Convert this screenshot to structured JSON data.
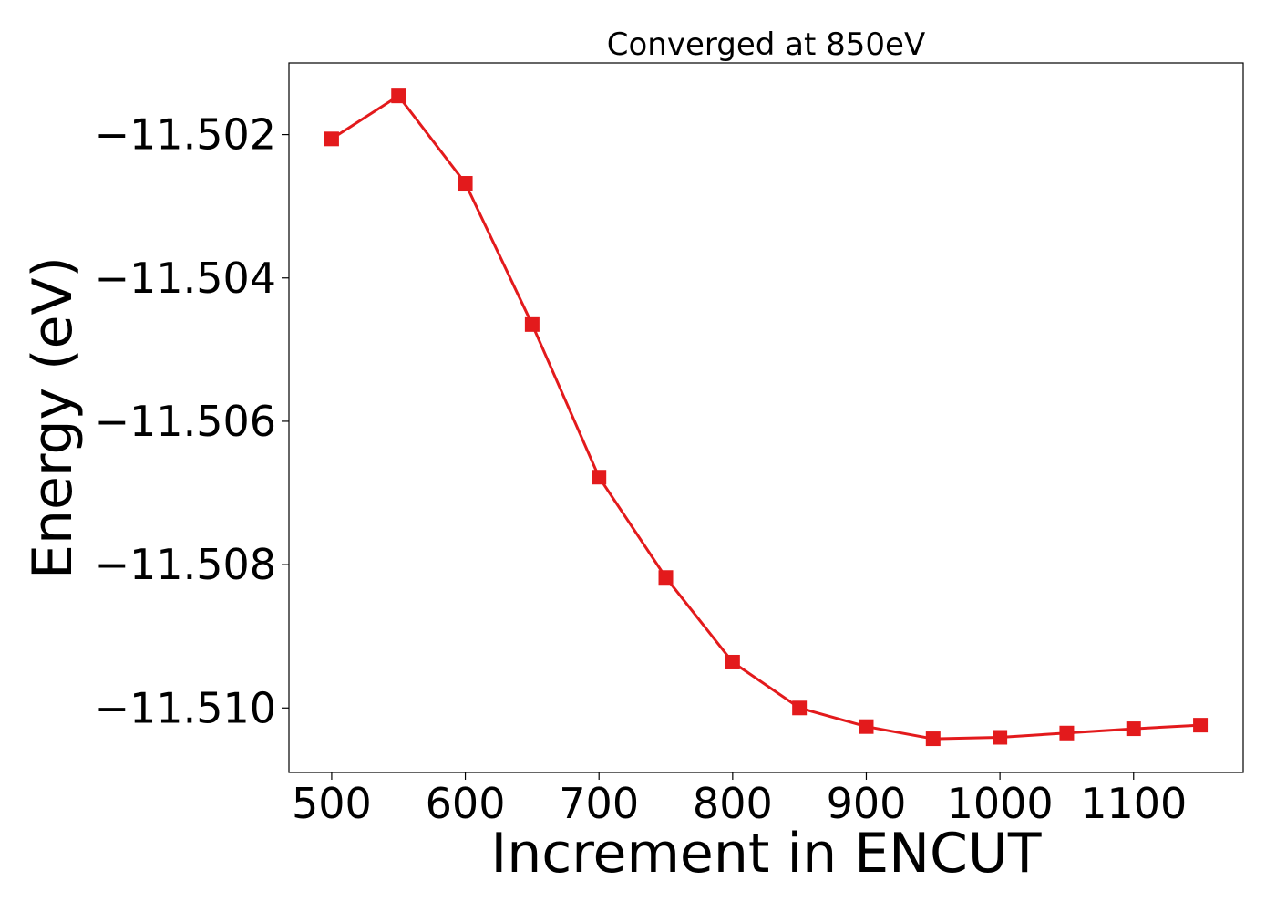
{
  "chart_data": {
    "type": "line",
    "title": "Converged at 850eV",
    "xlabel": "Increment in ENCUT",
    "ylabel": "Energy (eV)",
    "xlim": [
      468,
      1182
    ],
    "ylim": [
      -11.5109,
      -11.501
    ],
    "xticks": [
      500,
      600,
      700,
      800,
      900,
      1000,
      1100
    ],
    "yticks": [
      -11.502,
      -11.504,
      -11.506,
      -11.508,
      -11.51
    ],
    "ytick_labels": [
      "−11.502",
      "−11.504",
      "−11.506",
      "−11.508",
      "−11.510"
    ],
    "grid": false,
    "marker": "square",
    "color": "#e31a1c",
    "series": [
      {
        "x": [
          500,
          550,
          600,
          650,
          700,
          750,
          800,
          850,
          900,
          950,
          1000,
          1050,
          1100,
          1150
        ],
        "y": [
          -11.50206,
          -11.50146,
          -11.50268,
          -11.50465,
          -11.50678,
          -11.50818,
          -11.50936,
          -11.51,
          -11.51026,
          -11.51043,
          -11.51041,
          -11.51035,
          -11.51029,
          -11.51024
        ]
      }
    ]
  }
}
